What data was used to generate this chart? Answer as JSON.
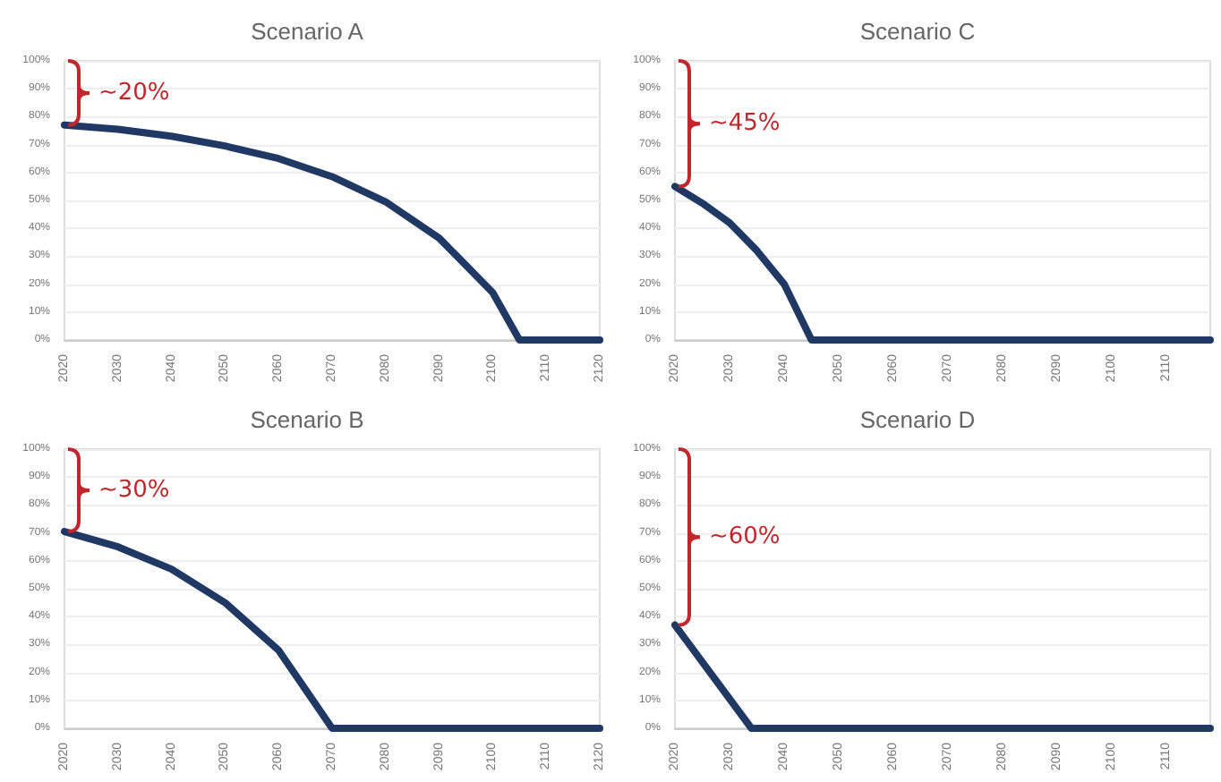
{
  "chart_data": [
    {
      "type": "line",
      "title": "Scenario A",
      "x": [
        2020,
        2030,
        2040,
        2050,
        2060,
        2070,
        2080,
        2090,
        2100,
        2105,
        2120
      ],
      "values": [
        77,
        75.5,
        73,
        69.5,
        65,
        58.5,
        49.5,
        36.5,
        17,
        0,
        0
      ],
      "color": "#1f3864",
      "xlim": [
        2020,
        2120
      ],
      "xticks": [
        2020,
        2030,
        2040,
        2050,
        2060,
        2070,
        2080,
        2090,
        2100,
        2110,
        2120
      ],
      "ylim": [
        0,
        100
      ],
      "yticks": [
        {
          "value": 0,
          "label": "0%"
        },
        {
          "value": 10,
          "label": "10%"
        },
        {
          "value": 20,
          "label": "20%"
        },
        {
          "value": 30,
          "label": "30%"
        },
        {
          "value": 40,
          "label": "40%"
        },
        {
          "value": 50,
          "label": "50%"
        },
        {
          "value": 60,
          "label": "60%"
        },
        {
          "value": 70,
          "label": "70%"
        },
        {
          "value": 80,
          "label": "80%"
        },
        {
          "value": 90,
          "label": "90%"
        },
        {
          "value": 100,
          "label": "100%"
        }
      ],
      "grid": "y",
      "marker": "none",
      "line_style": "solid",
      "annotations": [
        "~20%"
      ]
    },
    {
      "type": "line",
      "title": "Scenario C",
      "x": [
        2020,
        2025,
        2030,
        2035,
        2040,
        2045,
        2118
      ],
      "values": [
        55,
        49,
        42,
        32,
        20,
        0,
        0
      ],
      "color": "#1f3864",
      "xlim": [
        2020,
        2118
      ],
      "xticks": [
        2020,
        2030,
        2040,
        2050,
        2060,
        2070,
        2080,
        2090,
        2100,
        2110
      ],
      "ylim": [
        0,
        100
      ],
      "yticks": [
        {
          "value": 0,
          "label": "0%"
        },
        {
          "value": 10,
          "label": "10%"
        },
        {
          "value": 20,
          "label": "20%"
        },
        {
          "value": 30,
          "label": "30%"
        },
        {
          "value": 40,
          "label": "40%"
        },
        {
          "value": 50,
          "label": "50%"
        },
        {
          "value": 60,
          "label": "60%"
        },
        {
          "value": 70,
          "label": "70%"
        },
        {
          "value": 80,
          "label": "80%"
        },
        {
          "value": 90,
          "label": "90%"
        },
        {
          "value": 100,
          "label": "100%"
        }
      ],
      "grid": "y",
      "marker": "none",
      "line_style": "solid",
      "annotations": [
        "~45%"
      ]
    },
    {
      "type": "line",
      "title": "Scenario B",
      "x": [
        2020,
        2030,
        2040,
        2050,
        2060,
        2070,
        2120
      ],
      "values": [
        70.5,
        65,
        57,
        45,
        28,
        0,
        0
      ],
      "color": "#1f3864",
      "xlim": [
        2020,
        2120
      ],
      "xticks": [
        2020,
        2030,
        2040,
        2050,
        2060,
        2070,
        2080,
        2090,
        2100,
        2110,
        2120
      ],
      "ylim": [
        0,
        100
      ],
      "yticks": [
        {
          "value": 0,
          "label": "0%"
        },
        {
          "value": 10,
          "label": "10%"
        },
        {
          "value": 20,
          "label": "20%"
        },
        {
          "value": 30,
          "label": "30%"
        },
        {
          "value": 40,
          "label": "40%"
        },
        {
          "value": 50,
          "label": "50%"
        },
        {
          "value": 60,
          "label": "60%"
        },
        {
          "value": 70,
          "label": "70%"
        },
        {
          "value": 80,
          "label": "80%"
        },
        {
          "value": 90,
          "label": "90%"
        },
        {
          "value": 100,
          "label": "100%"
        }
      ],
      "grid": "y",
      "marker": "none",
      "line_style": "solid",
      "annotations": [
        "~30%"
      ]
    },
    {
      "type": "line",
      "title": "Scenario D",
      "x": [
        2020,
        2034,
        2118
      ],
      "values": [
        37,
        0,
        0
      ],
      "color": "#1f3864",
      "xlim": [
        2020,
        2118
      ],
      "xticks": [
        2020,
        2030,
        2040,
        2050,
        2060,
        2070,
        2080,
        2090,
        2100,
        2110
      ],
      "ylim": [
        0,
        100
      ],
      "yticks": [
        {
          "value": 0,
          "label": "0%"
        },
        {
          "value": 10,
          "label": "10%"
        },
        {
          "value": 20,
          "label": "20%"
        },
        {
          "value": 30,
          "label": "30%"
        },
        {
          "value": 40,
          "label": "40%"
        },
        {
          "value": 50,
          "label": "50%"
        },
        {
          "value": 60,
          "label": "60%"
        },
        {
          "value": 70,
          "label": "70%"
        },
        {
          "value": 80,
          "label": "80%"
        },
        {
          "value": 90,
          "label": "90%"
        },
        {
          "value": 100,
          "label": "100%"
        }
      ],
      "grid": "y",
      "marker": "none",
      "line_style": "solid",
      "annotations": [
        "~60%"
      ]
    }
  ]
}
